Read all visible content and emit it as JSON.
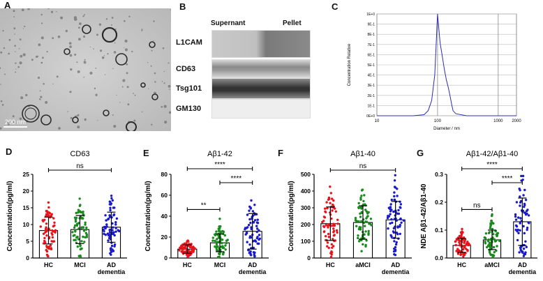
{
  "panels": {
    "A": "A",
    "B": "B",
    "C": "C",
    "D": "D",
    "E": "E",
    "F": "F",
    "G": "G"
  },
  "panelA": {
    "scale_bar": "200 nm"
  },
  "panelB": {
    "columns": [
      "Supernant",
      "Pellet"
    ],
    "rows": [
      "L1CAM",
      "CD63",
      "Tsg101",
      "GM130"
    ]
  },
  "panelC": {
    "ylabel": "Concentration Relative",
    "xlabel": "Diameter / nm",
    "yticks": [
      "0E+0",
      "1E-1",
      "2E-1",
      "3E-1",
      "4E-1",
      "5E-1",
      "6E-1",
      "7E-1",
      "8E-1",
      "9E-1",
      "1E+0"
    ],
    "xticks": [
      "10",
      "100",
      "1000",
      "2000"
    ]
  },
  "chart_data": [
    {
      "type": "line",
      "panel": "C",
      "x": [
        10,
        40,
        60,
        70,
        80,
        90,
        100,
        110,
        120,
        130,
        140,
        150,
        160,
        170,
        180,
        200,
        300,
        2000
      ],
      "y": [
        0,
        0,
        0.01,
        0.05,
        0.15,
        0.4,
        1.0,
        0.72,
        0.58,
        0.45,
        0.35,
        0.28,
        0.2,
        0.12,
        0.05,
        0.02,
        0,
        0
      ],
      "xscale": "log",
      "xlim": [
        10,
        2000
      ],
      "ylim": [
        0,
        1
      ],
      "xlabel": "Diameter / nm",
      "ylabel": "Concentration Relative"
    },
    {
      "type": "bar",
      "panel": "D",
      "title": "CD63",
      "ylabel": "Concentration(pg/ml)",
      "ylim": [
        0,
        25
      ],
      "yticks": [
        "0",
        "5",
        "10",
        "15",
        "20",
        "25"
      ],
      "categories": [
        "HC",
        "MCI",
        "AD dementia"
      ],
      "values": [
        8.2,
        8.5,
        9.2
      ],
      "sd": [
        4.0,
        4.2,
        4.5
      ],
      "point_color": [
        "#e8141b",
        "#1b8a1e",
        "#1a1ac8"
      ],
      "comparisons": [
        {
          "from": 0,
          "to": 2,
          "label": "ns"
        }
      ]
    },
    {
      "type": "bar",
      "panel": "E",
      "title": "Aβ1-42",
      "ylabel": "Concentration(pg/ml)",
      "ylim": [
        0,
        80
      ],
      "yticks": [
        "0",
        "20",
        "40",
        "60",
        "80"
      ],
      "categories": [
        "HC",
        "MCI",
        "AD dementia"
      ],
      "values": [
        8.5,
        14.5,
        25.5
      ],
      "sd": [
        4.0,
        8.5,
        17.0
      ],
      "point_color": [
        "#e8141b",
        "#1b8a1e",
        "#1a1ac8"
      ],
      "comparisons": [
        {
          "from": 0,
          "to": 1,
          "label": "**"
        },
        {
          "from": 1,
          "to": 2,
          "label": "****"
        },
        {
          "from": 0,
          "to": 2,
          "label": "****"
        }
      ]
    },
    {
      "type": "bar",
      "panel": "F",
      "title": "Aβ1-40",
      "ylabel": "Concentration(pg/ml)",
      "ylim": [
        0,
        500
      ],
      "yticks": [
        "0",
        "100",
        "200",
        "300",
        "400",
        "500"
      ],
      "categories": [
        "HC",
        "aMCI",
        "AD dementia"
      ],
      "values": [
        205,
        212,
        228
      ],
      "sd": [
        100,
        100,
        110
      ],
      "point_color": [
        "#e8141b",
        "#1b8a1e",
        "#1a1ac8"
      ],
      "comparisons": [
        {
          "from": 0,
          "to": 2,
          "label": "ns"
        }
      ]
    },
    {
      "type": "bar",
      "panel": "G",
      "title": "Aβ1-42/Aβ1-40",
      "ylabel": "NDE Aβ1-42/Aβ1-40",
      "ylim": [
        0,
        0.3
      ],
      "yticks": [
        "0.0",
        "0.1",
        "0.2",
        "0.3"
      ],
      "categories": [
        "HC",
        "aMCI",
        "AD dementia"
      ],
      "values": [
        0.045,
        0.065,
        0.13
      ],
      "sd": [
        0.025,
        0.035,
        0.085
      ],
      "point_color": [
        "#e8141b",
        "#1b8a1e",
        "#1a1ac8"
      ],
      "comparisons": [
        {
          "from": 0,
          "to": 1,
          "label": "ns"
        },
        {
          "from": 1,
          "to": 2,
          "label": "****"
        },
        {
          "from": 0,
          "to": 2,
          "label": "****"
        }
      ]
    }
  ]
}
